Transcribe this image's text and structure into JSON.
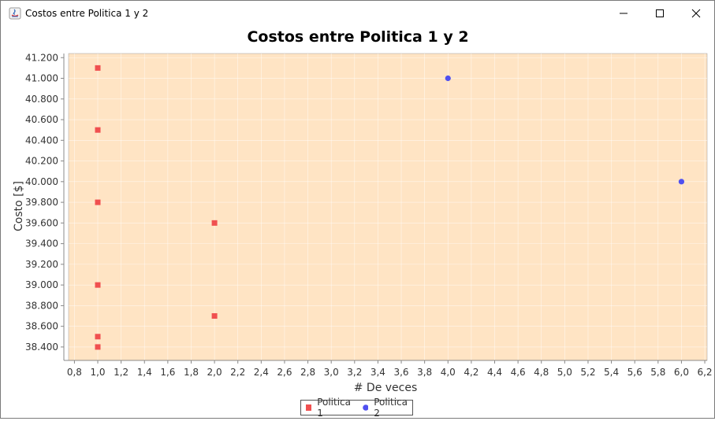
{
  "window": {
    "title": "Costos entre Politica 1 y 2",
    "icon": "java-icon"
  },
  "chart_data": {
    "type": "scatter",
    "title": "Costos entre Politica 1 y 2",
    "xlabel": "# De veces",
    "ylabel": "Costo [$]",
    "xlim": [
      0.75,
      6.22
    ],
    "ylim": [
      38.27,
      41.24
    ],
    "x_ticks": [
      "0,8",
      "1,0",
      "1,2",
      "1,4",
      "1,6",
      "1,8",
      "2,0",
      "2,2",
      "2,4",
      "2,6",
      "2,8",
      "3,0",
      "3,2",
      "3,4",
      "3,6",
      "3,8",
      "4,0",
      "4,2",
      "4,4",
      "4,6",
      "4,8",
      "5,0",
      "5,2",
      "5,4",
      "5,6",
      "5,8",
      "6,0",
      "6,2"
    ],
    "x_tick_values": [
      0.8,
      1.0,
      1.2,
      1.4,
      1.6,
      1.8,
      2.0,
      2.2,
      2.4,
      2.6,
      2.8,
      3.0,
      3.2,
      3.4,
      3.6,
      3.8,
      4.0,
      4.2,
      4.4,
      4.6,
      4.8,
      5.0,
      5.2,
      5.4,
      5.6,
      5.8,
      6.0,
      6.2
    ],
    "y_ticks": [
      "38.400",
      "38.600",
      "38.800",
      "39.000",
      "39.200",
      "39.400",
      "39.600",
      "39.800",
      "40.000",
      "40.200",
      "40.400",
      "40.600",
      "40.800",
      "41.000",
      "41.200"
    ],
    "y_tick_values": [
      38.4,
      38.6,
      38.8,
      39.0,
      39.2,
      39.4,
      39.6,
      39.8,
      40.0,
      40.2,
      40.4,
      40.6,
      40.8,
      41.0,
      41.2
    ],
    "grid": true,
    "legend_position": "bottom-center",
    "plot_background": "#ffe4c4",
    "series": [
      {
        "name": "Politica 1",
        "marker": "square",
        "color": "#f05050",
        "points": [
          [
            1.0,
            41.1
          ],
          [
            1.0,
            40.5
          ],
          [
            1.0,
            39.8
          ],
          [
            1.0,
            39.0
          ],
          [
            1.0,
            38.5
          ],
          [
            1.0,
            38.4
          ],
          [
            2.0,
            39.6
          ],
          [
            2.0,
            38.7
          ]
        ]
      },
      {
        "name": "Politica 2",
        "marker": "circle",
        "color": "#5050f0",
        "points": [
          [
            4.0,
            41.0
          ],
          [
            6.0,
            40.0
          ]
        ]
      }
    ]
  }
}
